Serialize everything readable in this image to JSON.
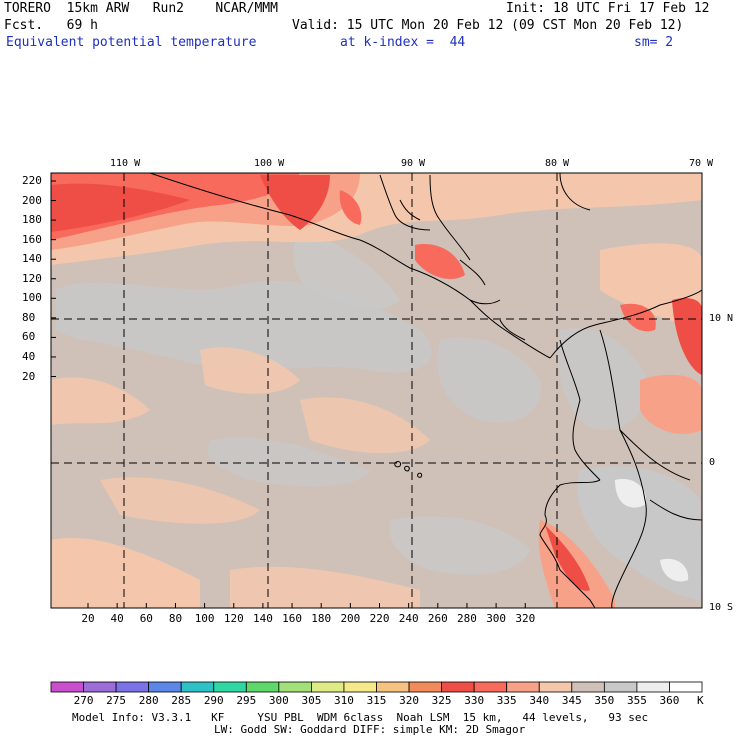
{
  "header": {
    "model": "TORERO  15km ARW   Run2    NCAR/MMM",
    "init": "Init: 18 UTC Fri 17 Feb 12",
    "fcst": "Fcst.   69 h",
    "valid": "Valid: 15 UTC Mon 20 Feb 12 (09 CST Mon 20 Feb 12)",
    "field": "Equivalent potential temperature",
    "level": "at k-index =  44",
    "smooth": "sm= 2"
  },
  "map": {
    "lon_labels": [
      "110 W",
      "100 W",
      "90 W",
      "80 W",
      "70 W"
    ],
    "lat_labels": [
      "10 N",
      "0",
      "10 S"
    ],
    "y_ticks": [
      "220",
      "200",
      "180",
      "160",
      "140",
      "120",
      "100",
      "80",
      "60",
      "40",
      "20"
    ],
    "x_ticks": [
      "20",
      "40",
      "60",
      "80",
      "100",
      "120",
      "140",
      "160",
      "180",
      "200",
      "220",
      "240",
      "260",
      "280",
      "300",
      "320"
    ]
  },
  "colorbar": {
    "labels": [
      "270",
      "275",
      "280",
      "285",
      "290",
      "295",
      "300",
      "305",
      "310",
      "315",
      "320",
      "325",
      "330",
      "335",
      "340",
      "345",
      "350",
      "355",
      "360"
    ],
    "unit": "K",
    "colors": [
      "#c94fcf",
      "#9c6cd8",
      "#7a73e8",
      "#5a87e8",
      "#2ec2c8",
      "#2fd8a3",
      "#5fd86a",
      "#a4e07a",
      "#dfec86",
      "#f5ea8a",
      "#f6c27f",
      "#f38a5c",
      "#ee4e45",
      "#f76a5c",
      "#f6a188",
      "#f4c7ad",
      "#cfc1b8",
      "#c8c8c8",
      "#eeeeee",
      "#ffffff"
    ]
  },
  "footer": {
    "line1": "Model Info: V3.3.1   KF     YSU PBL  WDM 6class  Noah LSM  15 km,   44 levels,   93 sec",
    "line2": "LW: Godd SW: Goddard DIFF: simple KM: 2D Smagor"
  },
  "palette": {
    "background": "#cfc1b8",
    "warm": "#f4c7ad",
    "hot": "#f6a188",
    "hotter": "#f76a5c",
    "hottest": "#ee4e45",
    "cool": "#c8c8c8",
    "coolest": "#eeeeee",
    "text_blue": "#1f2fc0"
  }
}
